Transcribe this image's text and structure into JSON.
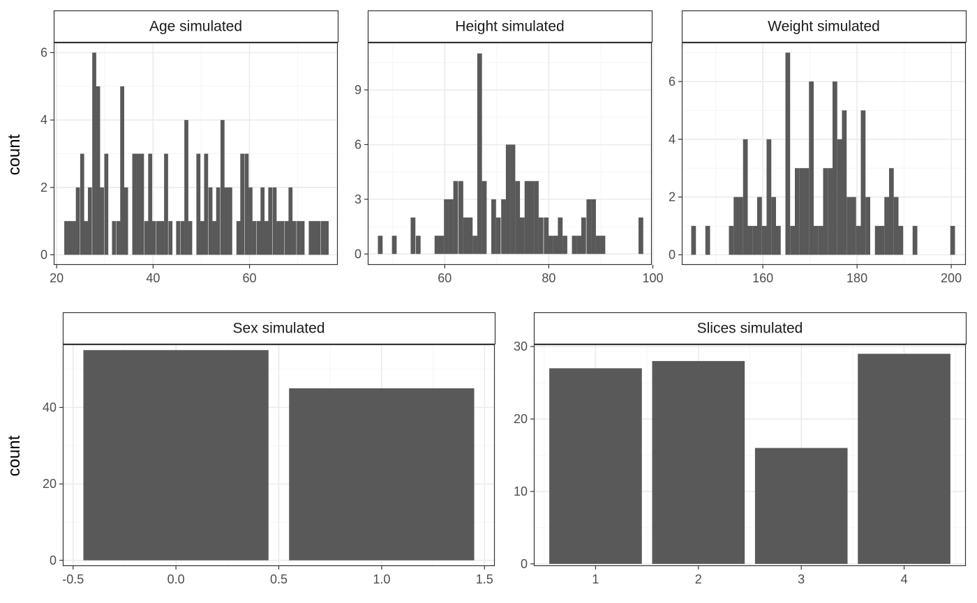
{
  "figure": {
    "ylabel_top": "count",
    "ylabel_bottom": "count"
  },
  "colors": {
    "bar_fill": "#595959",
    "panel_border": "#333333",
    "grid_major": "#ebebeb",
    "grid_minor": "#f5f5f5",
    "strip_fill": "#ffffff",
    "tick_text": "#4d4d4d"
  },
  "chart_data": [
    {
      "type": "bar",
      "subtype": "histogram",
      "title": "Age simulated",
      "xlabel": "",
      "ylabel": "count",
      "xlim": [
        19.4,
        78.3
      ],
      "ylim": [
        -0.3,
        6.3
      ],
      "xticks": [
        20,
        40,
        60
      ],
      "yticks": [
        0,
        2,
        4,
        6
      ],
      "xtick_labels": [
        "20",
        "40",
        "60"
      ],
      "ytick_labels": [
        "0",
        "2",
        "4",
        "6"
      ],
      "grid": true,
      "bin_width": 0.83,
      "bins": [
        {
          "x": 22.0,
          "count": 1
        },
        {
          "x": 22.8,
          "count": 1
        },
        {
          "x": 23.6,
          "count": 1
        },
        {
          "x": 24.4,
          "count": 2
        },
        {
          "x": 25.3,
          "count": 3
        },
        {
          "x": 26.1,
          "count": 1
        },
        {
          "x": 26.9,
          "count": 2
        },
        {
          "x": 27.8,
          "count": 6
        },
        {
          "x": 28.6,
          "count": 5
        },
        {
          "x": 29.4,
          "count": 2
        },
        {
          "x": 30.3,
          "count": 3
        },
        {
          "x": 31.1,
          "count": 0
        },
        {
          "x": 31.9,
          "count": 1
        },
        {
          "x": 32.8,
          "count": 1
        },
        {
          "x": 33.6,
          "count": 5
        },
        {
          "x": 34.4,
          "count": 2
        },
        {
          "x": 35.2,
          "count": 0
        },
        {
          "x": 36.1,
          "count": 3
        },
        {
          "x": 36.9,
          "count": 3
        },
        {
          "x": 37.7,
          "count": 3
        },
        {
          "x": 38.6,
          "count": 1
        },
        {
          "x": 39.4,
          "count": 3
        },
        {
          "x": 40.2,
          "count": 1
        },
        {
          "x": 41.1,
          "count": 1
        },
        {
          "x": 41.9,
          "count": 1
        },
        {
          "x": 42.7,
          "count": 3
        },
        {
          "x": 43.6,
          "count": 1
        },
        {
          "x": 44.4,
          "count": 0
        },
        {
          "x": 45.2,
          "count": 1
        },
        {
          "x": 46.1,
          "count": 1
        },
        {
          "x": 46.9,
          "count": 4
        },
        {
          "x": 47.7,
          "count": 1
        },
        {
          "x": 48.5,
          "count": 0
        },
        {
          "x": 49.4,
          "count": 3
        },
        {
          "x": 50.2,
          "count": 1
        },
        {
          "x": 51.0,
          "count": 3
        },
        {
          "x": 51.9,
          "count": 2
        },
        {
          "x": 52.7,
          "count": 1
        },
        {
          "x": 53.5,
          "count": 2
        },
        {
          "x": 54.4,
          "count": 4
        },
        {
          "x": 55.2,
          "count": 2
        },
        {
          "x": 56.0,
          "count": 2
        },
        {
          "x": 56.9,
          "count": 0
        },
        {
          "x": 57.7,
          "count": 1
        },
        {
          "x": 58.5,
          "count": 3
        },
        {
          "x": 59.4,
          "count": 3
        },
        {
          "x": 60.2,
          "count": 2
        },
        {
          "x": 61.0,
          "count": 1
        },
        {
          "x": 61.9,
          "count": 1
        },
        {
          "x": 62.7,
          "count": 2
        },
        {
          "x": 63.5,
          "count": 1
        },
        {
          "x": 64.3,
          "count": 2
        },
        {
          "x": 65.2,
          "count": 2
        },
        {
          "x": 66.0,
          "count": 1
        },
        {
          "x": 66.8,
          "count": 1
        },
        {
          "x": 67.7,
          "count": 1
        },
        {
          "x": 68.5,
          "count": 2
        },
        {
          "x": 69.3,
          "count": 1
        },
        {
          "x": 70.2,
          "count": 1
        },
        {
          "x": 71.0,
          "count": 1
        },
        {
          "x": 71.8,
          "count": 0
        },
        {
          "x": 72.7,
          "count": 1
        },
        {
          "x": 73.5,
          "count": 1
        },
        {
          "x": 74.3,
          "count": 1
        },
        {
          "x": 75.2,
          "count": 1
        },
        {
          "x": 76.0,
          "count": 1
        }
      ]
    },
    {
      "type": "bar",
      "subtype": "histogram",
      "title": "Height simulated",
      "xlabel": "",
      "ylabel": "",
      "xlim": [
        45.2,
        99.8
      ],
      "ylim": [
        -0.6,
        11.6
      ],
      "xticks": [
        60,
        80,
        100
      ],
      "yticks": [
        0,
        3,
        6,
        9
      ],
      "xtick_labels": [
        "60",
        "80",
        "100"
      ],
      "ytick_labels": [
        "0",
        "3",
        "6",
        "9"
      ],
      "grid": true,
      "bin_width": 0.91,
      "bins": [
        {
          "x": 47.6,
          "count": 1
        },
        {
          "x": 48.5,
          "count": 0
        },
        {
          "x": 49.4,
          "count": 0
        },
        {
          "x": 50.3,
          "count": 1
        },
        {
          "x": 51.2,
          "count": 0
        },
        {
          "x": 52.1,
          "count": 0
        },
        {
          "x": 53.0,
          "count": 0
        },
        {
          "x": 53.9,
          "count": 2
        },
        {
          "x": 54.9,
          "count": 1
        },
        {
          "x": 55.8,
          "count": 0
        },
        {
          "x": 56.7,
          "count": 0
        },
        {
          "x": 57.6,
          "count": 0
        },
        {
          "x": 58.5,
          "count": 1
        },
        {
          "x": 59.4,
          "count": 1
        },
        {
          "x": 60.3,
          "count": 3
        },
        {
          "x": 61.2,
          "count": 3
        },
        {
          "x": 62.1,
          "count": 4
        },
        {
          "x": 63.1,
          "count": 4
        },
        {
          "x": 64.0,
          "count": 2
        },
        {
          "x": 64.9,
          "count": 2
        },
        {
          "x": 65.8,
          "count": 1
        },
        {
          "x": 66.7,
          "count": 11
        },
        {
          "x": 67.6,
          "count": 4
        },
        {
          "x": 68.5,
          "count": 0
        },
        {
          "x": 69.4,
          "count": 3
        },
        {
          "x": 70.3,
          "count": 2
        },
        {
          "x": 71.3,
          "count": 3
        },
        {
          "x": 72.2,
          "count": 6
        },
        {
          "x": 73.1,
          "count": 6
        },
        {
          "x": 74.0,
          "count": 4
        },
        {
          "x": 74.9,
          "count": 2
        },
        {
          "x": 75.8,
          "count": 4
        },
        {
          "x": 76.7,
          "count": 4
        },
        {
          "x": 77.6,
          "count": 4
        },
        {
          "x": 78.5,
          "count": 2
        },
        {
          "x": 79.5,
          "count": 2
        },
        {
          "x": 80.4,
          "count": 1
        },
        {
          "x": 81.3,
          "count": 1
        },
        {
          "x": 82.2,
          "count": 2
        },
        {
          "x": 83.1,
          "count": 1
        },
        {
          "x": 84.0,
          "count": 0
        },
        {
          "x": 84.9,
          "count": 1
        },
        {
          "x": 85.8,
          "count": 1
        },
        {
          "x": 86.7,
          "count": 2
        },
        {
          "x": 87.7,
          "count": 3
        },
        {
          "x": 88.6,
          "count": 3
        },
        {
          "x": 89.5,
          "count": 1
        },
        {
          "x": 90.4,
          "count": 1
        },
        {
          "x": 91.3,
          "count": 0
        },
        {
          "x": 92.2,
          "count": 0
        },
        {
          "x": 93.1,
          "count": 0
        },
        {
          "x": 94.0,
          "count": 0
        },
        {
          "x": 94.9,
          "count": 0
        },
        {
          "x": 95.9,
          "count": 0
        },
        {
          "x": 96.8,
          "count": 0
        },
        {
          "x": 97.7,
          "count": 2
        }
      ]
    },
    {
      "type": "bar",
      "subtype": "histogram",
      "title": "Weight simulated",
      "xlabel": "",
      "ylabel": "",
      "xlim": [
        142.8,
        203.1
      ],
      "ylim": [
        -0.35,
        7.35
      ],
      "xticks": [
        160,
        180,
        200
      ],
      "yticks": [
        0,
        2,
        4,
        6
      ],
      "xtick_labels": [
        "160",
        "180",
        "200"
      ],
      "ytick_labels": [
        "0",
        "2",
        "4",
        "6"
      ],
      "grid": true,
      "bin_width": 1.0,
      "bins": [
        {
          "x": 145.3,
          "count": 1
        },
        {
          "x": 146.3,
          "count": 0
        },
        {
          "x": 147.3,
          "count": 0
        },
        {
          "x": 148.3,
          "count": 1
        },
        {
          "x": 149.3,
          "count": 0
        },
        {
          "x": 150.3,
          "count": 0
        },
        {
          "x": 151.3,
          "count": 0
        },
        {
          "x": 152.3,
          "count": 0
        },
        {
          "x": 153.3,
          "count": 1
        },
        {
          "x": 154.3,
          "count": 2
        },
        {
          "x": 155.3,
          "count": 2
        },
        {
          "x": 156.3,
          "count": 4
        },
        {
          "x": 157.3,
          "count": 1
        },
        {
          "x": 158.3,
          "count": 1
        },
        {
          "x": 159.3,
          "count": 2
        },
        {
          "x": 160.3,
          "count": 1
        },
        {
          "x": 161.3,
          "count": 4
        },
        {
          "x": 162.3,
          "count": 2
        },
        {
          "x": 163.3,
          "count": 1
        },
        {
          "x": 164.3,
          "count": 0
        },
        {
          "x": 165.3,
          "count": 7
        },
        {
          "x": 166.3,
          "count": 1
        },
        {
          "x": 167.3,
          "count": 3
        },
        {
          "x": 168.3,
          "count": 3
        },
        {
          "x": 169.3,
          "count": 3
        },
        {
          "x": 170.3,
          "count": 6
        },
        {
          "x": 171.3,
          "count": 1
        },
        {
          "x": 172.3,
          "count": 1
        },
        {
          "x": 173.3,
          "count": 3
        },
        {
          "x": 174.3,
          "count": 3
        },
        {
          "x": 175.3,
          "count": 6
        },
        {
          "x": 176.3,
          "count": 4
        },
        {
          "x": 177.3,
          "count": 5
        },
        {
          "x": 178.3,
          "count": 2
        },
        {
          "x": 179.3,
          "count": 2
        },
        {
          "x": 180.3,
          "count": 1
        },
        {
          "x": 181.3,
          "count": 5
        },
        {
          "x": 182.3,
          "count": 2
        },
        {
          "x": 183.3,
          "count": 0
        },
        {
          "x": 184.3,
          "count": 1
        },
        {
          "x": 185.3,
          "count": 1
        },
        {
          "x": 186.3,
          "count": 2
        },
        {
          "x": 187.3,
          "count": 3
        },
        {
          "x": 188.3,
          "count": 2
        },
        {
          "x": 189.3,
          "count": 1
        },
        {
          "x": 190.3,
          "count": 0
        },
        {
          "x": 191.3,
          "count": 0
        },
        {
          "x": 192.3,
          "count": 1
        },
        {
          "x": 193.3,
          "count": 0
        },
        {
          "x": 194.3,
          "count": 0
        },
        {
          "x": 195.3,
          "count": 0
        },
        {
          "x": 196.3,
          "count": 0
        },
        {
          "x": 197.3,
          "count": 0
        },
        {
          "x": 198.3,
          "count": 0
        },
        {
          "x": 199.3,
          "count": 0
        },
        {
          "x": 200.3,
          "count": 1
        }
      ]
    },
    {
      "type": "bar",
      "title": "Sex simulated",
      "xlabel": "",
      "ylabel": "count",
      "xlim": [
        -0.55,
        1.55
      ],
      "ylim": [
        -1.5,
        56.5
      ],
      "xticks": [
        -0.5,
        0.0,
        0.5,
        1.0,
        1.5
      ],
      "yticks": [
        0,
        20,
        40
      ],
      "xtick_labels": [
        "-0.5",
        "0.0",
        "0.5",
        "1.0",
        "1.5"
      ],
      "ytick_labels": [
        "0",
        "20",
        "40"
      ],
      "grid": true,
      "bar_width": 0.9,
      "bars": [
        {
          "x": 0,
          "value": 55
        },
        {
          "x": 1,
          "value": 45
        }
      ]
    },
    {
      "type": "bar",
      "title": "Slices simulated",
      "xlabel": "",
      "ylabel": "",
      "xlim": [
        0.4,
        4.6
      ],
      "ylim": [
        -0.3,
        30.3
      ],
      "xticks": [
        1,
        2,
        3,
        4
      ],
      "yticks": [
        0,
        10,
        20,
        30
      ],
      "xtick_labels": [
        "1",
        "2",
        "3",
        "4"
      ],
      "ytick_labels": [
        "0",
        "10",
        "20",
        "30"
      ],
      "grid": true,
      "bar_width": 0.9,
      "bars": [
        {
          "x": 1,
          "value": 27
        },
        {
          "x": 2,
          "value": 28
        },
        {
          "x": 3,
          "value": 16
        },
        {
          "x": 4,
          "value": 29
        }
      ]
    }
  ]
}
